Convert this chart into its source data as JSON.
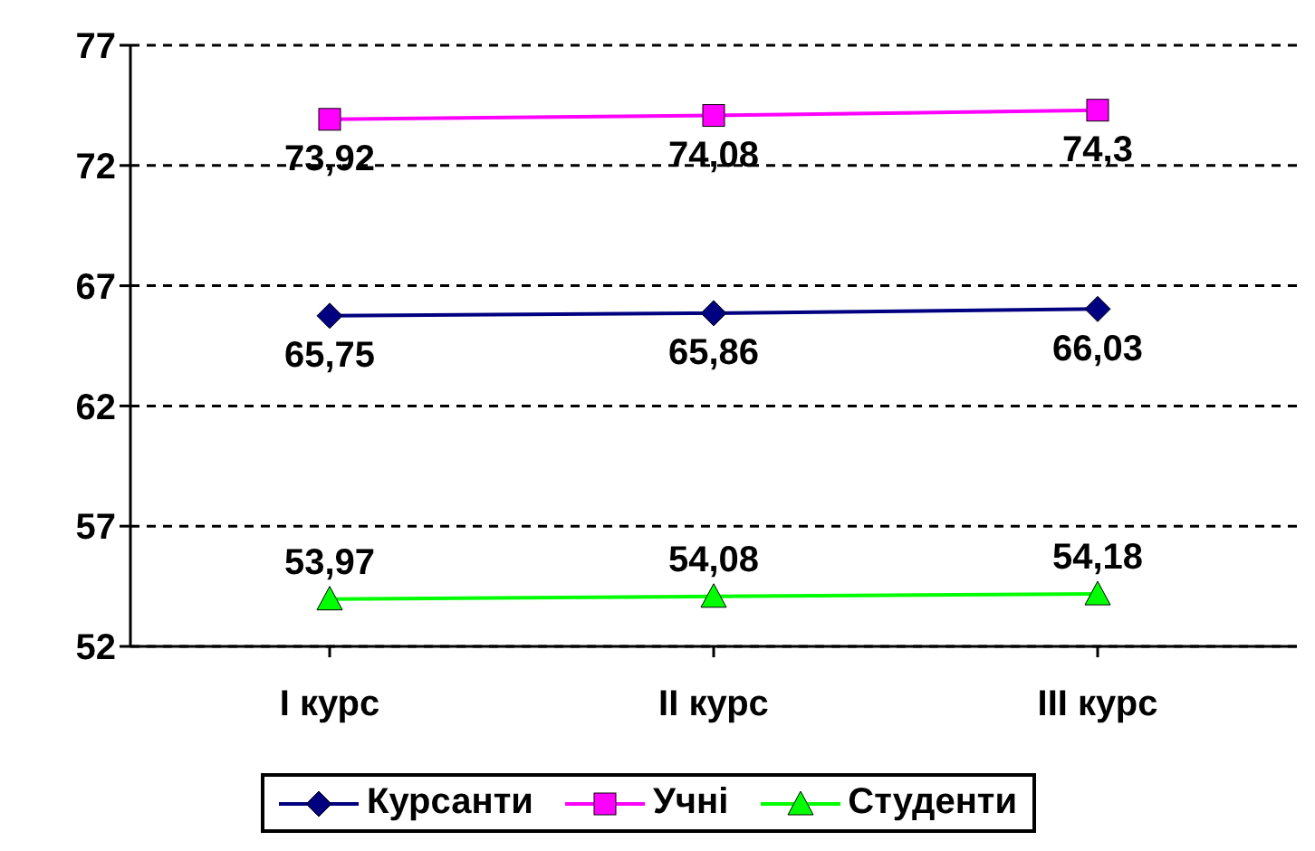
{
  "chart_data": {
    "type": "line",
    "categories": [
      "I курс",
      "II курс",
      "III курс"
    ],
    "series": [
      {
        "name": "Курсанти",
        "color": "#000080",
        "marker": "diamond",
        "values": [
          65.75,
          65.86,
          66.03
        ],
        "value_labels": [
          "65,75",
          "65,86",
          "66,03"
        ]
      },
      {
        "name": "Учні",
        "color": "#ff00ff",
        "marker": "square",
        "values": [
          73.92,
          74.08,
          74.3
        ],
        "value_labels": [
          "73,92",
          "74,08",
          "74,3"
        ]
      },
      {
        "name": "Студенти",
        "color": "#00ff00",
        "marker": "triangle",
        "values": [
          53.97,
          54.08,
          54.18
        ],
        "value_labels": [
          "53,97",
          "54,08",
          "54,18"
        ]
      }
    ],
    "ylim": [
      52,
      77
    ],
    "yticks": [
      52,
      57,
      62,
      67,
      72,
      77
    ],
    "grid": "y",
    "legend": "bottom"
  }
}
